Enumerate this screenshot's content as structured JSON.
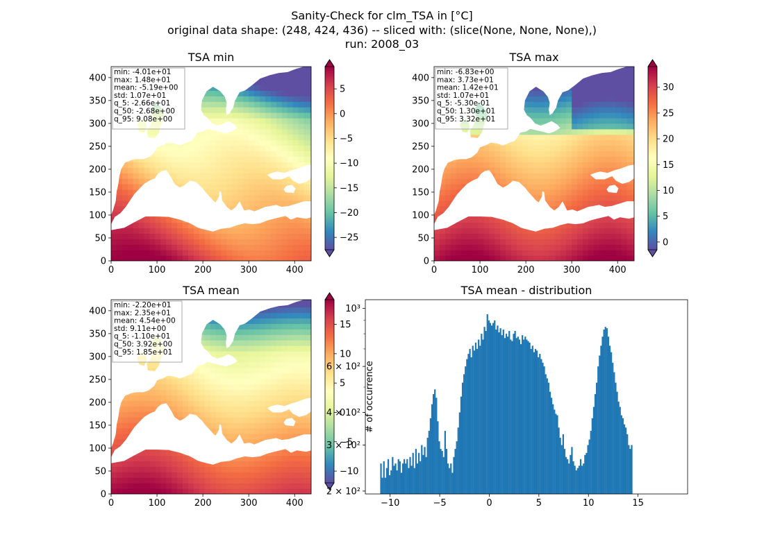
{
  "figure": {
    "title_lines": [
      "Sanity-Check for clm_TSA in [°C]",
      "original data shape: (248, 424, 436) -- sliced with: (slice(None, None, None),)",
      "run: 2008_03"
    ]
  },
  "colors": {
    "map_cmap": "Spectral_r",
    "hist_bar": "#1f77b4"
  },
  "chart_data": [
    {
      "type": "heatmap",
      "title": "TSA min",
      "xlim": [
        0,
        436
      ],
      "ylim": [
        0,
        424
      ],
      "x_ticks": [
        0,
        100,
        200,
        300,
        400
      ],
      "y_ticks": [
        0,
        50,
        100,
        150,
        200,
        250,
        300,
        350,
        400
      ],
      "colorbar": {
        "vmin": -27.5,
        "vmax": 9.5,
        "ticks": [
          -25,
          -20,
          -15,
          -10,
          -5,
          0,
          5
        ],
        "extend": "both"
      },
      "stats": [
        "min: -4.01e+01",
        "max: 1.48e+01",
        "mean: -5.19e+00",
        "std: 1.07e+01",
        "q_5: -2.66e+01",
        "q_50: -2.68e+00",
        "q_95: 9.08e+00"
      ]
    },
    {
      "type": "heatmap",
      "title": "TSA max",
      "xlim": [
        0,
        436
      ],
      "ylim": [
        0,
        424
      ],
      "x_ticks": [
        0,
        100,
        200,
        300,
        400
      ],
      "y_ticks": [
        0,
        50,
        100,
        150,
        200,
        250,
        300,
        350,
        400
      ],
      "colorbar": {
        "vmin": -1.5,
        "vmax": 34,
        "ticks": [
          0,
          5,
          10,
          15,
          20,
          25,
          30
        ],
        "extend": "both"
      },
      "stats": [
        "min: -6.83e+00",
        "max: 3.73e+01",
        "mean: 1.42e+01",
        "std: 1.07e+01",
        "q_5: -5.30e-01",
        "q_50: 1.30e+01",
        "q_95: 3.32e+01"
      ]
    },
    {
      "type": "heatmap",
      "title": "TSA mean",
      "xlim": [
        0,
        436
      ],
      "ylim": [
        0,
        424
      ],
      "x_ticks": [
        0,
        100,
        200,
        300,
        400
      ],
      "y_ticks": [
        0,
        50,
        100,
        150,
        200,
        250,
        300,
        350,
        400
      ],
      "colorbar": {
        "vmin": -12,
        "vmax": 19.2,
        "ticks": [
          -10,
          -5,
          0,
          5,
          10,
          15
        ],
        "extend": "both"
      },
      "stats": [
        "min: -2.20e+01",
        "max: 2.35e+01",
        "mean: 4.54e+00",
        "std: 9.11e+00",
        "q_5: -1.10e+01",
        "q_50: 3.92e+00",
        "q_95: 1.85e+01"
      ]
    },
    {
      "type": "bar",
      "title": "TSA mean - distribution",
      "ylabel": "# of occurrence",
      "xlim": [
        -12.5,
        20
      ],
      "x_ticks": [
        -10,
        -5,
        0,
        5,
        10,
        15
      ],
      "ylim": [
        195,
        1080
      ],
      "y_scale": "log",
      "y_ticks": [
        {
          "value": 200,
          "label": "2 × 10²"
        },
        {
          "value": 300,
          "label": "3 × 10²"
        },
        {
          "value": 400,
          "label": "4 × 10²"
        },
        {
          "value": 600,
          "label": "6 × 10²"
        },
        {
          "value": 1000,
          "label": "10³"
        }
      ],
      "bin_start": -11.0,
      "bin_width": 0.147,
      "counts": [
        255,
        225,
        260,
        225,
        245,
        265,
        230,
        240,
        270,
        250,
        255,
        240,
        265,
        260,
        235,
        255,
        265,
        255,
        265,
        245,
        270,
        250,
        280,
        245,
        290,
        255,
        280,
        260,
        300,
        275,
        295,
        270,
        320,
        340,
        380,
        430,
        470,
        490,
        455,
        370,
        310,
        290,
        285,
        270,
        340,
        290,
        255,
        245,
        255,
        235,
        270,
        290,
        310,
        350,
        400,
        460,
        520,
        560,
        600,
        640,
        670,
        700,
        650,
        720,
        690,
        740,
        700,
        760,
        720,
        800,
        760,
        850,
        820,
        950,
        900,
        880,
        860,
        880,
        900,
        830,
        860,
        810,
        840,
        790,
        830,
        770,
        800,
        780,
        820,
        760,
        750,
        800,
        820,
        770,
        780,
        760,
        730,
        790,
        760,
        780,
        760,
        750,
        740,
        700,
        720,
        680,
        700,
        690,
        650,
        670,
        640,
        620,
        600,
        560,
        540,
        520,
        480,
        455,
        430,
        410,
        395,
        390,
        350,
        320,
        300,
        330,
        290,
        270,
        265,
        255,
        275,
        295,
        260,
        250,
        240,
        245,
        250,
        265,
        250,
        255,
        275,
        280,
        300,
        315,
        340,
        380,
        420,
        470,
        520,
        600,
        660,
        720,
        780,
        830,
        850,
        840,
        780,
        720,
        680,
        620,
        570,
        520,
        480,
        440,
        420,
        390,
        380,
        360,
        350,
        330,
        300,
        290,
        300
      ]
    }
  ]
}
